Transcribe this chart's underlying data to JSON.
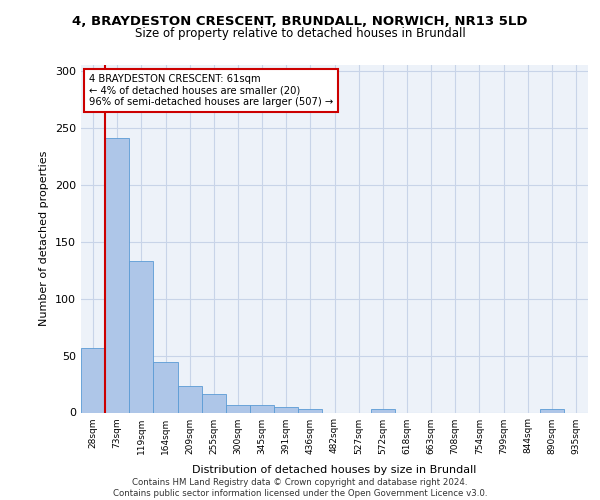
{
  "title_line1": "4, BRAYDESTON CRESCENT, BRUNDALL, NORWICH, NR13 5LD",
  "title_line2": "Size of property relative to detached houses in Brundall",
  "xlabel": "Distribution of detached houses by size in Brundall",
  "ylabel": "Number of detached properties",
  "categories": [
    "28sqm",
    "73sqm",
    "119sqm",
    "164sqm",
    "209sqm",
    "255sqm",
    "300sqm",
    "345sqm",
    "391sqm",
    "436sqm",
    "482sqm",
    "527sqm",
    "572sqm",
    "618sqm",
    "663sqm",
    "708sqm",
    "754sqm",
    "799sqm",
    "844sqm",
    "890sqm",
    "935sqm"
  ],
  "values": [
    57,
    241,
    133,
    44,
    23,
    16,
    7,
    7,
    5,
    3,
    0,
    0,
    3,
    0,
    0,
    0,
    0,
    0,
    0,
    3,
    0
  ],
  "bar_color": "#aec6e8",
  "bar_edge_color": "#5b9bd5",
  "annotation_line1": "4 BRAYDESTON CRESCENT: 61sqm",
  "annotation_line2": "← 4% of detached houses are smaller (20)",
  "annotation_line3": "96% of semi-detached houses are larger (507) →",
  "vline_color": "#cc0000",
  "annotation_box_color": "#cc0000",
  "footer": "Contains HM Land Registry data © Crown copyright and database right 2024.\nContains public sector information licensed under the Open Government Licence v3.0.",
  "ylim": [
    0,
    305
  ],
  "yticks": [
    0,
    50,
    100,
    150,
    200,
    250,
    300
  ],
  "grid_color": "#c8d4e8",
  "bg_color": "#edf2f9"
}
